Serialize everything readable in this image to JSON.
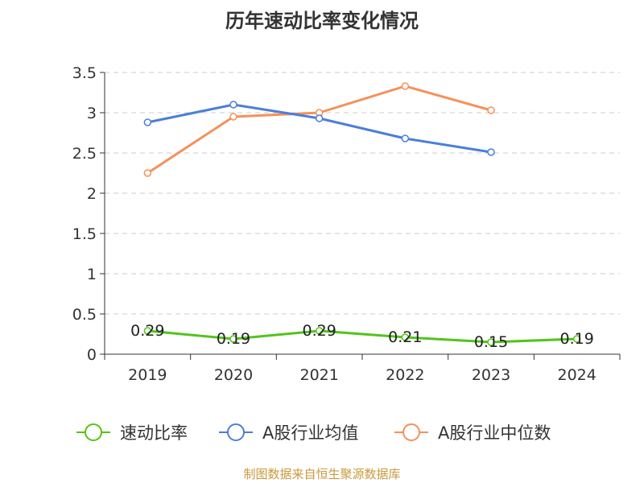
{
  "title": "历年速动比率变化情况",
  "source": "制图数据来自恒生聚源数据库",
  "chart_data": {
    "type": "line",
    "title": "历年速动比率变化情况",
    "categories": [
      "2019",
      "2020",
      "2021",
      "2022",
      "2023",
      "2024"
    ],
    "y_ticks": [
      "0",
      "0.5",
      "1",
      "1.5",
      "2",
      "2.5",
      "3",
      "3.5"
    ],
    "ylim": [
      0,
      3.5
    ],
    "grid": true,
    "legend_position": "bottom",
    "series": [
      {
        "name": "速动比率",
        "color": "#52c41a",
        "values": [
          0.29,
          0.19,
          0.29,
          0.21,
          0.15,
          0.19
        ],
        "labels": [
          "0.29",
          "0.19",
          "0.29",
          "0.21",
          "0.15",
          "0.19"
        ]
      },
      {
        "name": "A股行业均值",
        "color": "#4a7fd9",
        "values": [
          2.88,
          3.1,
          2.93,
          2.68,
          2.51,
          null
        ]
      },
      {
        "name": "A股行业中位数",
        "color": "#f5915a",
        "values": [
          2.25,
          2.95,
          3.0,
          3.33,
          3.03,
          null
        ]
      }
    ]
  }
}
